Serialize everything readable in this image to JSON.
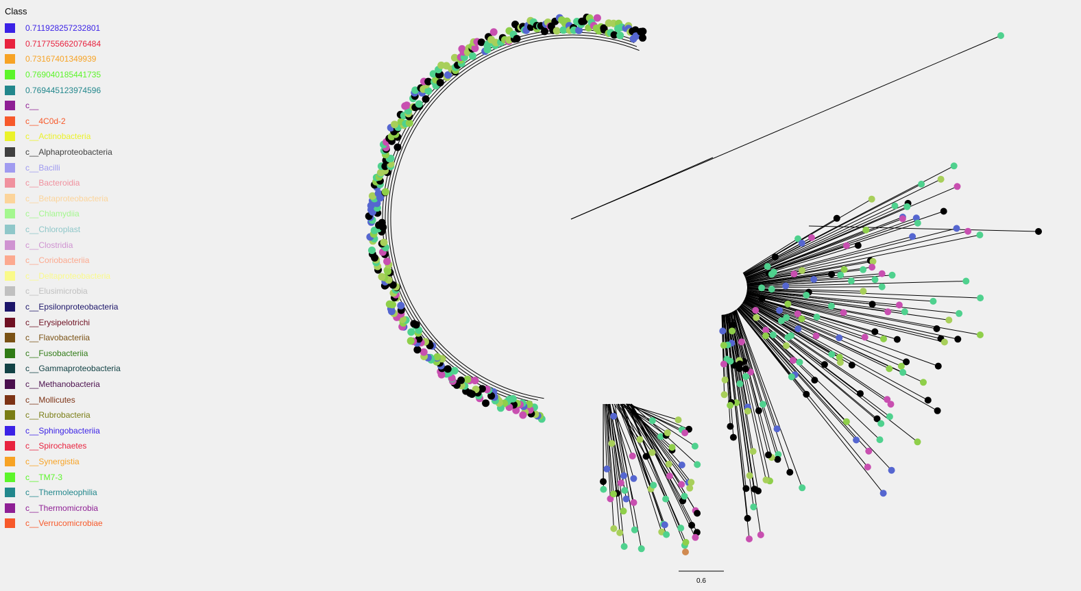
{
  "legend": {
    "title": "Class",
    "items": [
      {
        "label": "0.711928257232801",
        "color": "#3b22e6"
      },
      {
        "label": "0.717755662076484",
        "color": "#e8233f"
      },
      {
        "label": "0.73167401349939",
        "color": "#f7a325"
      },
      {
        "label": "0.769040185441735",
        "color": "#5cf52a"
      },
      {
        "label": "0.769445123974596",
        "color": "#22878c"
      },
      {
        "label": "c__",
        "color": "#8e1f94"
      },
      {
        "label": "c__4C0d-2",
        "color": "#f7592a"
      },
      {
        "label": "c__Actinobacteria",
        "color": "#ebf22a"
      },
      {
        "label": "c__Alphaproteobacteria",
        "color": "#404040"
      },
      {
        "label": "c__Bacilli",
        "color": "#a09bf0"
      },
      {
        "label": "c__Bacteroidia",
        "color": "#f0919e"
      },
      {
        "label": "c__Betaproteobacteria",
        "color": "#fcd49a"
      },
      {
        "label": "c__Chlamydiia",
        "color": "#a4f78f"
      },
      {
        "label": "c__Chloroplast",
        "color": "#8fc7c9"
      },
      {
        "label": "c__Clostridia",
        "color": "#cf93d1"
      },
      {
        "label": "c__Coriobacteriia",
        "color": "#fca98f"
      },
      {
        "label": "c__Deltaproteobacteria",
        "color": "#fafa8a"
      },
      {
        "label": "c__Elusimicrobia",
        "color": "#c0c0c0"
      },
      {
        "label": "c__Epsilonproteobacteria",
        "color": "#1c1569"
      },
      {
        "label": "c__Erysipelotrichi",
        "color": "#6e1022"
      },
      {
        "label": "c__Flavobacteriia",
        "color": "#7a5215"
      },
      {
        "label": "c__Fusobacteriia",
        "color": "#2f7a15"
      },
      {
        "label": "c__Gammaproteobacteria",
        "color": "#124245"
      },
      {
        "label": "c__Methanobacteria",
        "color": "#4a0f4d"
      },
      {
        "label": "c__Mollicutes",
        "color": "#7d3315"
      },
      {
        "label": "c__Rubrobacteria",
        "color": "#7a7d15"
      },
      {
        "label": "c__Sphingobacteriia",
        "color": "#3b22e6"
      },
      {
        "label": "c__Spirochaetes",
        "color": "#e8233f"
      },
      {
        "label": "c__Synergistia",
        "color": "#f7a325"
      },
      {
        "label": "c__TM7-3",
        "color": "#5cf52a"
      },
      {
        "label": "c__Thermoleophilia",
        "color": "#22878c"
      },
      {
        "label": "c__Thermomicrobia",
        "color": "#8e1f94"
      },
      {
        "label": "c__Verrucomicrobiae",
        "color": "#f7592a"
      }
    ]
  },
  "scale_bar": {
    "label": "0.6"
  },
  "tip_colors": {
    "black": "#000000",
    "teal_green": "#4fd18e",
    "light_green": "#8fcf4a",
    "lime": "#a8cf5a",
    "blue": "#5566d0",
    "magenta": "#c84fb0",
    "orange": "#d08a50"
  }
}
